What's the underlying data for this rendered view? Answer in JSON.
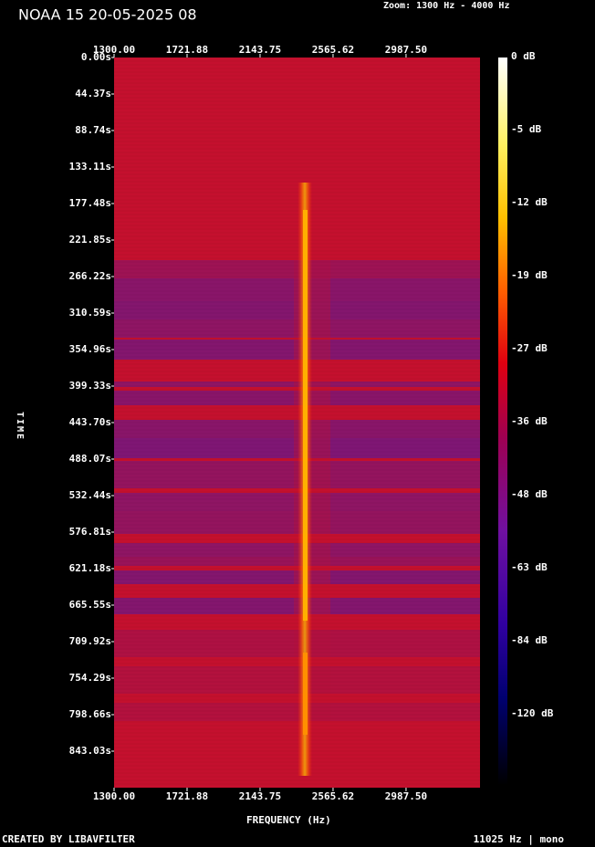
{
  "chart_data": {
    "type": "spectrogram",
    "title": "NOAA 15 20-05-2025 08",
    "zoom_label": "Zoom: 1300 Hz - 4000 Hz",
    "xlabel": "FREQUENCY (Hz)",
    "ylabel": "TIME",
    "xlim": [
      1300,
      3415
    ],
    "xticks": [
      {
        "value": 1300,
        "label": "1300.00"
      },
      {
        "value": 1721.88,
        "label": "1721.88"
      },
      {
        "value": 2143.75,
        "label": "2143.75"
      },
      {
        "value": 2565.62,
        "label": "2565.62"
      },
      {
        "value": 2987.5,
        "label": "2987.50"
      }
    ],
    "ylim": [
      0,
      887.4
    ],
    "yticks": [
      {
        "value": 0,
        "label": "0.00s"
      },
      {
        "value": 44.37,
        "label": "44.37s"
      },
      {
        "value": 88.74,
        "label": "88.74s"
      },
      {
        "value": 133.11,
        "label": "133.11s"
      },
      {
        "value": 177.48,
        "label": "177.48s"
      },
      {
        "value": 221.85,
        "label": "221.85s"
      },
      {
        "value": 266.22,
        "label": "266.22s"
      },
      {
        "value": 310.59,
        "label": "310.59s"
      },
      {
        "value": 354.96,
        "label": "354.96s"
      },
      {
        "value": 399.33,
        "label": "399.33s"
      },
      {
        "value": 443.7,
        "label": "443.70s"
      },
      {
        "value": 488.07,
        "label": "488.07s"
      },
      {
        "value": 532.44,
        "label": "532.44s"
      },
      {
        "value": 576.81,
        "label": "576.81s"
      },
      {
        "value": 621.18,
        "label": "621.18s"
      },
      {
        "value": 665.55,
        "label": "665.55s"
      },
      {
        "value": 709.92,
        "label": "709.92s"
      },
      {
        "value": 754.29,
        "label": "754.29s"
      },
      {
        "value": 798.66,
        "label": "798.66s"
      },
      {
        "value": 843.03,
        "label": "843.03s"
      }
    ],
    "colorbar_labels": [
      "0 dB",
      "-5 dB",
      "-12 dB",
      "-19 dB",
      "-27 dB",
      "-36 dB",
      "-48 dB",
      "-63 dB",
      "-84 dB",
      "-120 dB"
    ],
    "footer_left": "CREATED BY LIBAVFILTER",
    "footer_right": "11025 Hz | mono"
  }
}
